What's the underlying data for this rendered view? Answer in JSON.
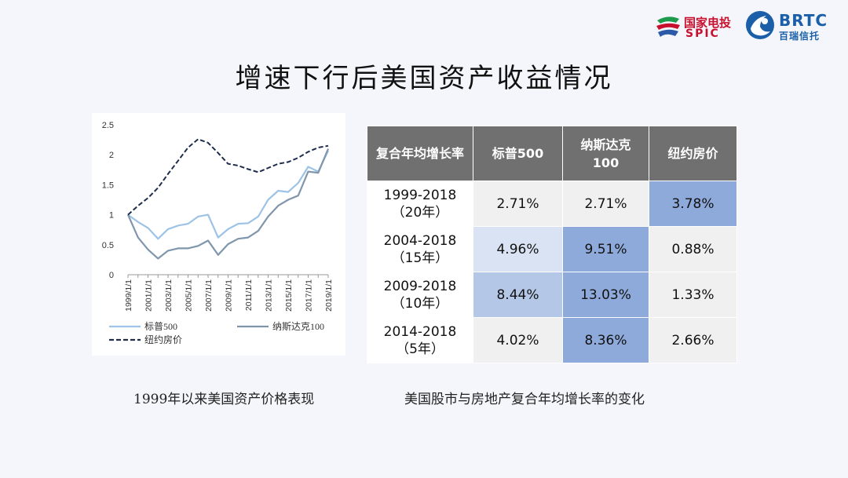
{
  "header": {
    "spic_cn": "国家电投",
    "spic_en": "SPIC",
    "brtc_en": "BRTC",
    "brtc_cn": "百瑞信托"
  },
  "title": "增速下行后美国资产收益情况",
  "chart_caption": "1999年以来美国资产价格表现",
  "table_caption": "美国股市与房地产复合年均增长率的变化",
  "chart_data": {
    "type": "line",
    "x": [
      "1999/1/1",
      "2000/1/1",
      "2001/1/1",
      "2002/1/1",
      "2003/1/1",
      "2004/1/1",
      "2005/1/1",
      "2006/1/1",
      "2007/1/1",
      "2008/1/1",
      "2009/1/1",
      "2010/1/1",
      "2011/1/1",
      "2012/1/1",
      "2013/1/1",
      "2014/1/1",
      "2015/1/1",
      "2016/1/1",
      "2017/1/1",
      "2018/1/1",
      "2019/1/1"
    ],
    "tick_labels": [
      "1999/1/1",
      "2001/1/1",
      "2003/1/1",
      "2005/1/1",
      "2007/1/1",
      "2009/1/1",
      "2011/1/1",
      "2013/1/1",
      "2015/1/1",
      "2017/1/1",
      "2019/1/1"
    ],
    "ylim": [
      0,
      2.5
    ],
    "y_ticks": [
      "0",
      "0.5",
      "1",
      "1.5",
      "2",
      "2.5"
    ],
    "series": [
      {
        "name": "标普500",
        "style": "solid",
        "color": "#9dc3e6",
        "values": [
          1.0,
          0.88,
          0.78,
          0.6,
          0.76,
          0.82,
          0.85,
          0.97,
          1.0,
          0.62,
          0.76,
          0.85,
          0.86,
          0.97,
          1.25,
          1.4,
          1.38,
          1.53,
          1.8,
          1.72,
          2.07
        ]
      },
      {
        "name": "纳斯达克100",
        "style": "solid",
        "color": "#7f96ad",
        "values": [
          1.0,
          0.62,
          0.42,
          0.27,
          0.4,
          0.44,
          0.44,
          0.48,
          0.57,
          0.33,
          0.51,
          0.6,
          0.62,
          0.73,
          0.97,
          1.15,
          1.25,
          1.32,
          1.72,
          1.7,
          2.1
        ]
      },
      {
        "name": "纽约房价",
        "style": "dashed",
        "color": "#1f2d4d",
        "values": [
          1.0,
          1.15,
          1.28,
          1.45,
          1.68,
          1.9,
          2.12,
          2.26,
          2.2,
          2.03,
          1.85,
          1.82,
          1.76,
          1.71,
          1.78,
          1.85,
          1.88,
          1.95,
          2.05,
          2.12,
          2.15
        ]
      }
    ],
    "legend": [
      "标普500",
      "纳斯达克100",
      "纽约房价"
    ],
    "legend_position": "bottom",
    "grid": false
  },
  "table": {
    "headers": [
      "复合年均增长率",
      "标普500",
      "纳斯达克100",
      "纽约房价"
    ],
    "rows": [
      {
        "period": "1999-2018",
        "years": "（20年）",
        "values": [
          "2.71%",
          "2.71%",
          "3.78%"
        ]
      },
      {
        "period": "2004-2018",
        "years": "（15年）",
        "values": [
          "4.96%",
          "9.51%",
          "0.88%"
        ]
      },
      {
        "period": "2009-2018",
        "years": "（10年）",
        "values": [
          "8.44%",
          "13.03%",
          "1.33%"
        ]
      },
      {
        "period": "2014-2018",
        "years": "（5年）",
        "values": [
          "4.02%",
          "8.36%",
          "2.66%"
        ]
      }
    ],
    "colors": {
      "strong": "#8eaadb",
      "light": "#dae3f3",
      "mid": "#b4c7e7",
      "header": "#707070"
    }
  }
}
